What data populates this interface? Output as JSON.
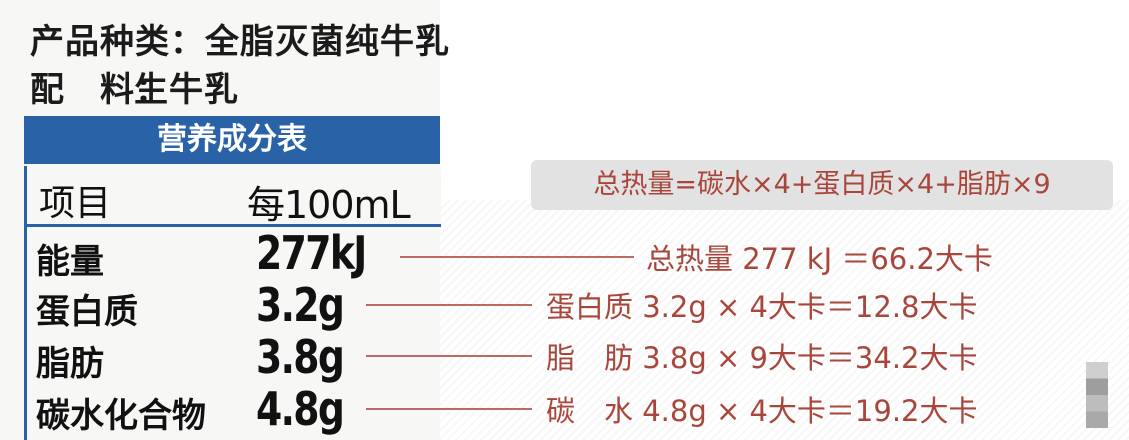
{
  "label": {
    "product_type": "产品种类：全脂灭菌纯牛乳",
    "ingredients_key": "配　料：",
    "ingredients_value": "生牛乳",
    "table_title": "营养成分表",
    "col_item": "项目",
    "col_per": "每100mL",
    "rows": [
      {
        "name": "能量",
        "value": "277kJ"
      },
      {
        "name": "蛋白质",
        "value": "3.2g"
      },
      {
        "name": "脂肪",
        "value": "3.8g"
      },
      {
        "name": "碳水化合物",
        "value": "4.8g"
      }
    ]
  },
  "annotation": {
    "formula": "总热量=碳水×4+蛋白质×4+脂肪×9",
    "calcs": [
      "总热量 277 kJ ＝66.2大卡",
      "蛋白质 3.2g × 4大卡＝12.8大卡",
      "脂　肪 3.8g × 9大卡＝34.2大卡",
      "碳　水 4.8g × 4大卡＝19.2大卡"
    ],
    "text_color": "#a9463b",
    "header_color": "#2a62a8"
  }
}
